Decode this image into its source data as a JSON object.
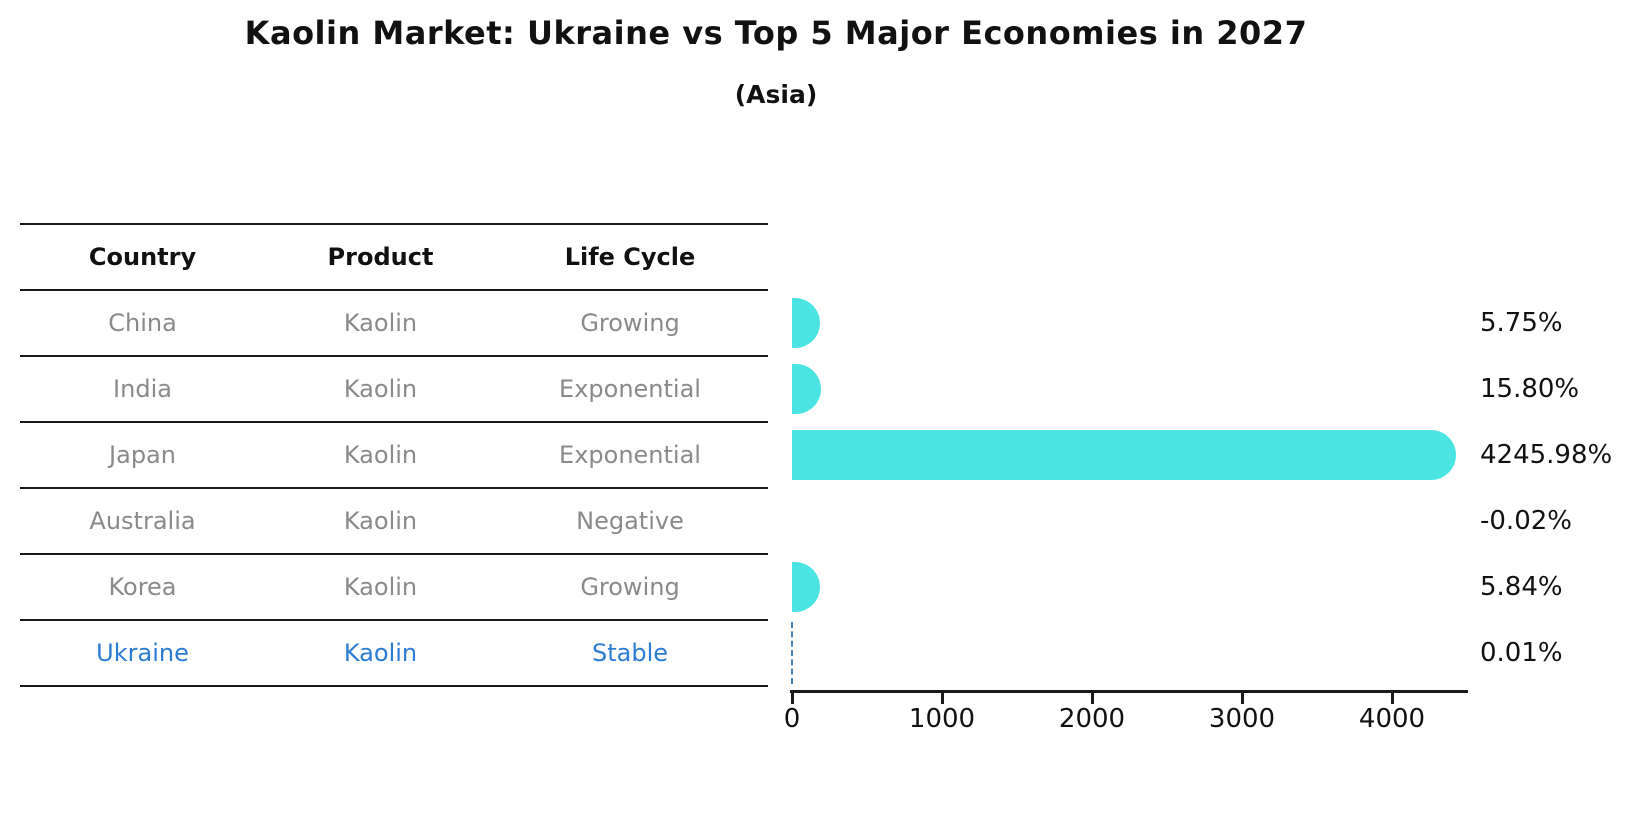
{
  "chart_data": {
    "type": "bar",
    "orientation": "horizontal",
    "title": "Kaolin Market: Ukraine vs Top 5 Major Economies in 2027",
    "subtitle": "(Asia)",
    "categories": [
      "China",
      "India",
      "Japan",
      "Australia",
      "Korea",
      "Ukraine"
    ],
    "values": [
      5.75,
      15.8,
      4245.98,
      -0.02,
      5.84,
      0.01
    ],
    "value_labels": [
      "5.75%",
      "15.80%",
      "4245.98%",
      "-0.02%",
      "5.84%",
      "0.01%"
    ],
    "x_ticks": [
      "0",
      "1000",
      "2000",
      "3000",
      "4000"
    ],
    "xlim": [
      0,
      4500
    ],
    "xlabel": "",
    "ylabel": "",
    "grid": false,
    "legend": "none",
    "bar_color": "#4ae4e2",
    "highlight_category": "Ukraine",
    "highlight_marker": "dashed-zero-line"
  },
  "table": {
    "headers": [
      "Country",
      "Product",
      "Life Cycle"
    ],
    "rows": [
      {
        "country": "China",
        "product": "Kaolin",
        "life_cycle": "Growing"
      },
      {
        "country": "India",
        "product": "Kaolin",
        "life_cycle": "Exponential"
      },
      {
        "country": "Japan",
        "product": "Kaolin",
        "life_cycle": "Exponential"
      },
      {
        "country": "Australia",
        "product": "Kaolin",
        "life_cycle": "Negative"
      },
      {
        "country": "Korea",
        "product": "Kaolin",
        "life_cycle": "Growing"
      },
      {
        "country": "Ukraine",
        "product": "Kaolin",
        "life_cycle": "Stable"
      }
    ]
  },
  "colors": {
    "bar": "#4ae4e2",
    "highlight_text": "#2b7cd3",
    "dashed_marker": "#4682b4",
    "row_text": "#8a8a8a",
    "heading_text": "#111111"
  }
}
